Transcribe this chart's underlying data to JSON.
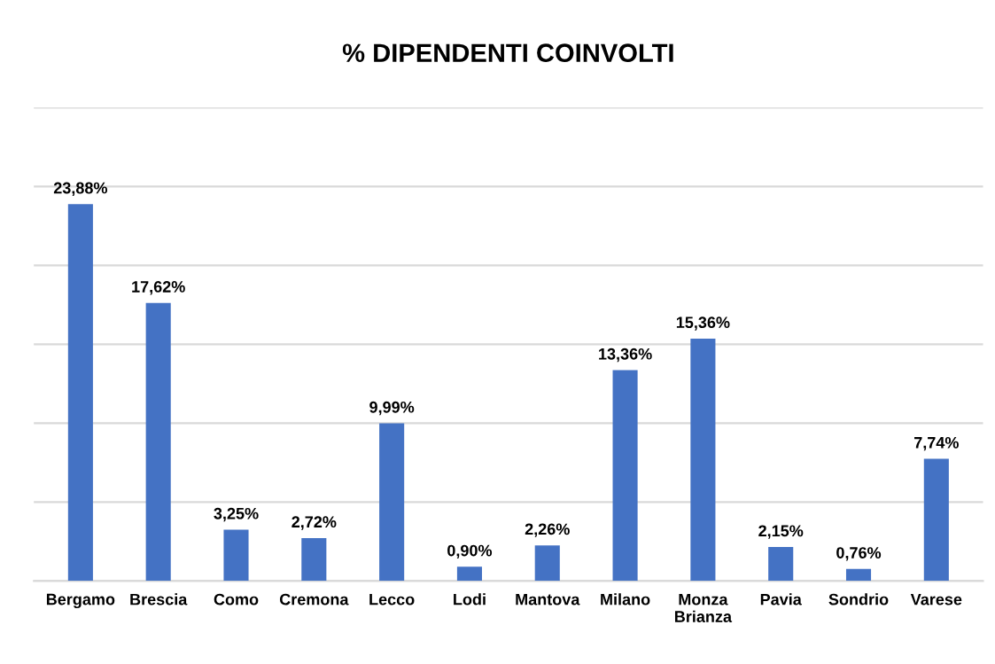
{
  "chart_data": {
    "type": "bar",
    "title": "% DIPENDENTI COINVOLTI",
    "categories": [
      "Bergamo",
      "Brescia",
      "Como",
      "Cremona",
      "Lecco",
      "Lodi",
      "Mantova",
      "Milano",
      "Monza Brianza",
      "Pavia",
      "Sondrio",
      "Varese"
    ],
    "values": [
      23.88,
      17.62,
      3.25,
      2.72,
      9.99,
      0.9,
      2.26,
      13.36,
      15.36,
      2.15,
      0.76,
      7.74
    ],
    "value_labels": [
      "23,88%",
      "17,62%",
      "3,25%",
      "2,72%",
      "9,99%",
      "0,90%",
      "2,26%",
      "13,36%",
      "15,36%",
      "2,15%",
      "0,76%",
      "7,74%"
    ],
    "color": "#4472c4",
    "ylim": [
      0,
      30
    ],
    "yticks": [
      {
        "value": 0,
        "label": null
      },
      {
        "value": 5,
        "label": null
      },
      {
        "value": 10,
        "label": null
      },
      {
        "value": 15,
        "label": null
      },
      {
        "value": 20,
        "label": null
      },
      {
        "value": 25,
        "label": null
      },
      {
        "value": 30,
        "label": null
      }
    ],
    "tick_labels": "x",
    "grid": "y"
  }
}
